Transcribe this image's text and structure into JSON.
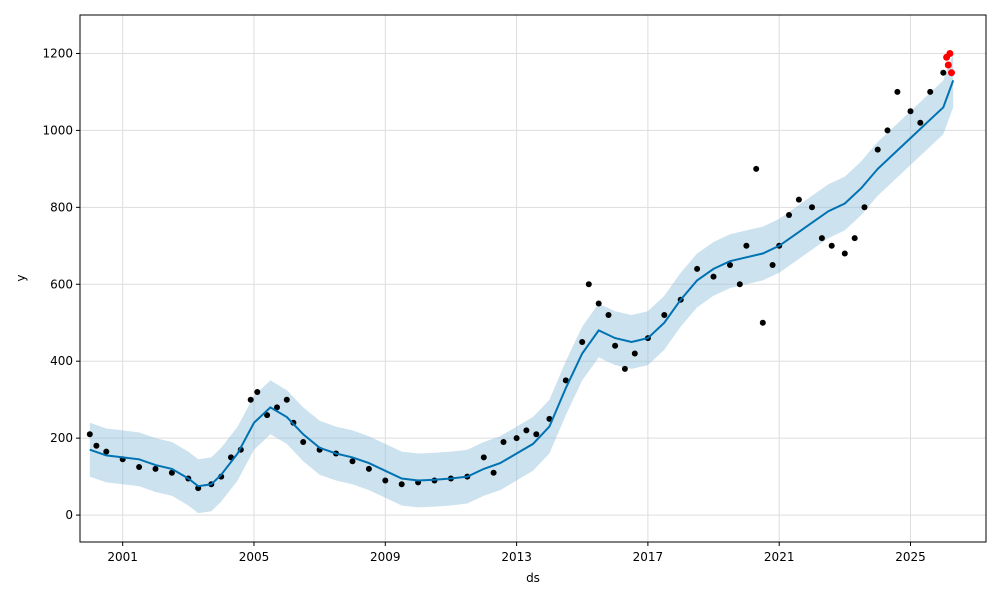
{
  "chart_data": {
    "type": "line",
    "title": "",
    "xlabel": "ds",
    "ylabel": "y",
    "xlim": [
      1999.7,
      2027.3
    ],
    "ylim": [
      -70,
      1300
    ],
    "x_ticks": [
      2001,
      2005,
      2009,
      2013,
      2017,
      2021,
      2025
    ],
    "x_tick_labels": [
      "2001",
      "2005",
      "2009",
      "2013",
      "2017",
      "2021",
      "2025"
    ],
    "y_ticks": [
      0,
      200,
      400,
      600,
      800,
      1000,
      1200
    ],
    "y_tick_labels": [
      "0",
      "200",
      "400",
      "600",
      "800",
      "1000",
      "1200"
    ],
    "grid": true,
    "legend": "none",
    "colors": {
      "forecast_line": "#0072B2",
      "interval_band": "#8FBEDC",
      "observed_points": "#000000",
      "highlight_points": "#FF0000",
      "grid": "#DDDDDD"
    },
    "series": [
      {
        "type": "line",
        "x": [
          2000.0,
          2000.5,
          2001.0,
          2001.5,
          2002.0,
          2002.5,
          2003.0,
          2003.3,
          2003.7,
          2004.0,
          2004.5,
          2005.0,
          2005.5,
          2006.0,
          2006.5,
          2007.0,
          2007.5,
          2008.0,
          2008.5,
          2009.0,
          2009.5,
          2010.0,
          2010.5,
          2011.0,
          2011.5,
          2012.0,
          2012.5,
          2013.0,
          2013.5,
          2014.0,
          2014.5,
          2015.0,
          2015.5,
          2016.0,
          2016.5,
          2017.0,
          2017.5,
          2018.0,
          2018.5,
          2019.0,
          2019.5,
          2020.0,
          2020.5,
          2021.0,
          2021.5,
          2022.0,
          2022.5,
          2023.0,
          2023.5,
          2024.0,
          2024.5,
          2025.0,
          2025.5,
          2026.0,
          2026.3
        ],
        "values": [
          170,
          155,
          150,
          145,
          130,
          120,
          95,
          75,
          80,
          105,
          160,
          240,
          280,
          255,
          210,
          175,
          160,
          150,
          135,
          115,
          95,
          90,
          92,
          95,
          100,
          120,
          135,
          160,
          185,
          230,
          330,
          420,
          480,
          460,
          450,
          460,
          500,
          560,
          610,
          640,
          660,
          670,
          680,
          700,
          730,
          760,
          790,
          810,
          850,
          900,
          940,
          980,
          1020,
          1060,
          1130
        ]
      },
      {
        "type": "band",
        "x": [
          2000.0,
          2000.5,
          2001.0,
          2001.5,
          2002.0,
          2002.5,
          2003.0,
          2003.3,
          2003.7,
          2004.0,
          2004.5,
          2005.0,
          2005.5,
          2006.0,
          2006.5,
          2007.0,
          2007.5,
          2008.0,
          2008.5,
          2009.0,
          2009.5,
          2010.0,
          2010.5,
          2011.0,
          2011.5,
          2012.0,
          2012.5,
          2013.0,
          2013.5,
          2014.0,
          2014.5,
          2015.0,
          2015.5,
          2016.0,
          2016.5,
          2017.0,
          2017.5,
          2018.0,
          2018.5,
          2019.0,
          2019.5,
          2020.0,
          2020.5,
          2021.0,
          2021.5,
          2022.0,
          2022.5,
          2023.0,
          2023.5,
          2024.0,
          2024.5,
          2025.0,
          2025.5,
          2026.0,
          2026.3
        ],
        "lower": [
          100,
          85,
          80,
          75,
          60,
          50,
          25,
          5,
          10,
          35,
          90,
          170,
          210,
          185,
          140,
          105,
          90,
          80,
          65,
          45,
          25,
          20,
          22,
          25,
          30,
          50,
          65,
          90,
          115,
          160,
          260,
          350,
          410,
          390,
          380,
          390,
          430,
          490,
          540,
          570,
          590,
          600,
          610,
          630,
          660,
          690,
          720,
          740,
          780,
          830,
          870,
          910,
          950,
          990,
          1060
        ],
        "upper": [
          240,
          225,
          220,
          215,
          200,
          190,
          165,
          145,
          150,
          175,
          230,
          310,
          350,
          325,
          280,
          245,
          230,
          220,
          205,
          185,
          165,
          160,
          162,
          165,
          170,
          190,
          205,
          230,
          255,
          300,
          400,
          490,
          550,
          530,
          520,
          530,
          570,
          630,
          680,
          710,
          730,
          740,
          750,
          770,
          800,
          830,
          860,
          880,
          920,
          970,
          1010,
          1050,
          1090,
          1130,
          1200
        ]
      },
      {
        "type": "scatter",
        "x": [
          2000.0,
          2000.2,
          2000.5,
          2001.0,
          2001.5,
          2002.0,
          2002.5,
          2003.0,
          2003.3,
          2003.7,
          2004.0,
          2004.3,
          2004.6,
          2004.9,
          2005.1,
          2005.4,
          2005.7,
          2006.0,
          2006.2,
          2006.5,
          2007.0,
          2007.5,
          2008.0,
          2008.5,
          2009.0,
          2009.5,
          2010.0,
          2010.5,
          2011.0,
          2011.5,
          2012.0,
          2012.3,
          2012.6,
          2013.0,
          2013.3,
          2013.6,
          2014.0,
          2014.5,
          2015.0,
          2015.2,
          2015.5,
          2015.8,
          2016.0,
          2016.3,
          2016.6,
          2017.0,
          2017.5,
          2018.0,
          2018.5,
          2019.0,
          2019.5,
          2019.8,
          2020.0,
          2020.3,
          2020.5,
          2020.8,
          2021.0,
          2021.3,
          2021.6,
          2022.0,
          2022.3,
          2022.6,
          2023.0,
          2023.3,
          2023.6,
          2024.0,
          2024.3,
          2024.6,
          2025.0,
          2025.3,
          2025.6,
          2026.0
        ],
        "values": [
          210,
          180,
          165,
          145,
          125,
          120,
          110,
          95,
          70,
          80,
          100,
          150,
          170,
          300,
          320,
          260,
          280,
          300,
          240,
          190,
          170,
          160,
          140,
          120,
          90,
          80,
          85,
          90,
          95,
          100,
          150,
          110,
          190,
          200,
          220,
          210,
          250,
          350,
          450,
          600,
          550,
          520,
          440,
          380,
          420,
          460,
          520,
          560,
          640,
          620,
          650,
          600,
          700,
          900,
          500,
          650,
          700,
          780,
          820,
          800,
          720,
          700,
          680,
          720,
          800,
          950,
          1000,
          1100,
          1050,
          1020,
          1100,
          1150
        ]
      },
      {
        "type": "scatter",
        "x": [
          2026.1,
          2026.15,
          2026.2,
          2026.25
        ],
        "values": [
          1190,
          1170,
          1200,
          1150
        ]
      }
    ]
  }
}
